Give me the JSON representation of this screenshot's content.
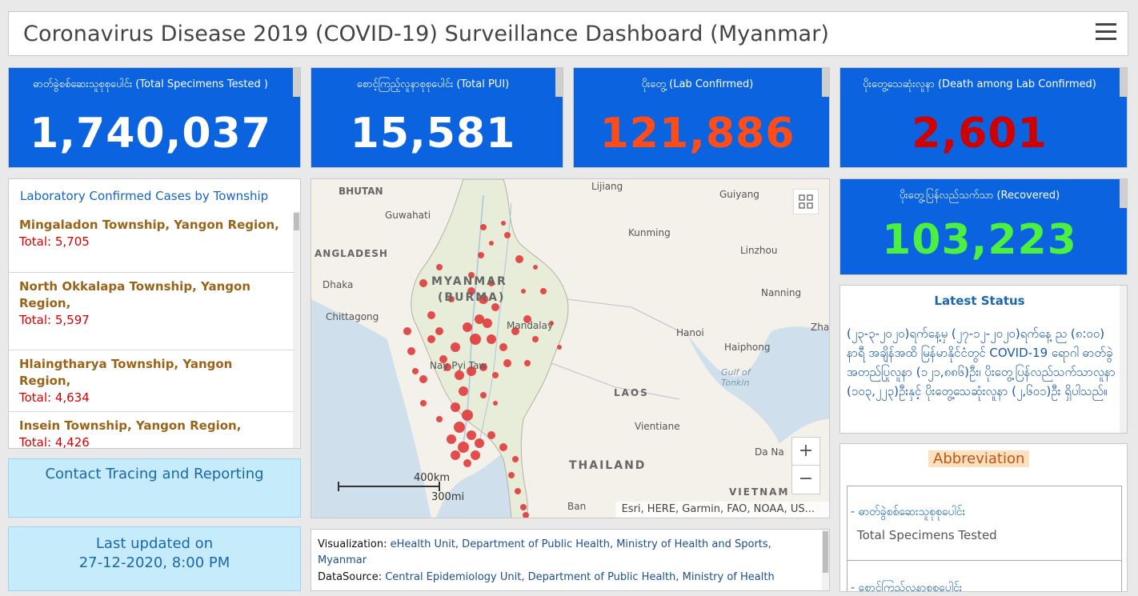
{
  "header": {
    "title": "Coronavirus Disease 2019 (COVID-19) Surveillance Dashboard (Myanmar)"
  },
  "stats": {
    "tested": {
      "label": "ဓာတ်ခွဲစစ်ဆေးသူစုစုပေါင်း (Total Specimens Tested )",
      "value": "1,740,037",
      "color": "#ffffff"
    },
    "pui": {
      "label": "စောင့်ကြည့်လူနာစုစုပေါင်း (Total PUI)",
      "value": "15,581",
      "color": "#ffffff"
    },
    "confirmed": {
      "label": "ပိုးတွေ့ (Lab Confirmed)",
      "value": "121,886",
      "color": "#ff4d1a"
    },
    "deaths": {
      "label": "ပိုးတွေ့သေဆုံးလူနာ (Death among Lab Confirmed)",
      "value": "2,601",
      "color": "#d10000"
    },
    "recovered": {
      "label": "ပိုးတွေ့ပြန်လည်သက်သာ (Recovered)",
      "value": "103,223",
      "color": "#4cf040"
    }
  },
  "township_list": {
    "title": "Laboratory Confirmed Cases by Township",
    "items": [
      {
        "name": "Mingaladon Township, Yangon Region,",
        "total": "Total: 5,705"
      },
      {
        "name": "North Okkalapa Township, Yangon Region,",
        "total": "Total: 5,597"
      },
      {
        "name": "Hlaingtharya Township, Yangon Region,",
        "total": "Total: 4,634"
      },
      {
        "name": "Insein Township, Yangon Region,",
        "total": "Total: 4,426"
      }
    ]
  },
  "contact_tracing": {
    "label": "Contact Tracing and Reporting"
  },
  "last_updated": {
    "line1": "Last updated on",
    "line2": "27-12-2020, 8:00 PM"
  },
  "map": {
    "labels": {
      "bhutan": "BHUTAN",
      "guwahati": "Guwahati",
      "lijiang": "Lijiang",
      "guiyang": "Guiyang",
      "kunming": "Kunming",
      "bangladesh": "ANGLADESH",
      "linzhou": "Linzhou",
      "dhaka": "Dhaka",
      "myanmar": "MYANMAR",
      "burma": "(BURMA)",
      "nanning": "Nanning",
      "chittagong": "Chittagong",
      "mandalay": "Mandalay",
      "hanoi": "Hanoi",
      "zhan": "Zhan",
      "haiphong": "Haiphong",
      "naypyitaw": "Nay Pyi Taw",
      "gulf": "Gulf of",
      "tonkin": "Tonkin",
      "laos": "LAOS",
      "vientiane": "Vientiane",
      "danang": "Da Na",
      "thailand": "THAILAND",
      "vietnam": "VIETNAM",
      "ban": "Ban"
    },
    "scale_km": "400km",
    "scale_mi": "300mi",
    "zoom_in": "+",
    "zoom_out": "−",
    "attribution": "Esri, HERE, Garmin, FAO, NOAA, US..."
  },
  "credit": {
    "vis_label": "Visualization:",
    "vis_value": "eHealth Unit, Department of Public Health, Ministry of Health and Sports, Myanmar",
    "ds_label": "DataSource:",
    "ds_value": "Central Epidemiology Unit, Department of Public Health, Ministry of Health"
  },
  "latest_status": {
    "title": "Latest Status",
    "body": "(၂၃-၃-၂၀၂၀)ရက်နေ့မှ (၂၇-၁၂-၂၀၂၀)ရက်နေ့ ည (၈:၀၀) နာရီ အချိန်အထိ မြန်မာနိုင်ငံတွင် COVID-19 ရောဂါ ဓာတ်ခွဲအတည်ပြုလူနာ (၁၂၁,၈၈၆)ဦး၊ ပိုးတွေ့ပြန်လည်သက်သာလူနာ (၁၀၃,၂၂၃)ဦးနှင့် ပိုးတွေ့သေဆုံးလူနာ (၂,၆၀၁)ဦး ရှိပါသည်။"
  },
  "abbreviation": {
    "title": "Abbreviation",
    "items": [
      {
        "key": "- ဓာတ်ခွဲစစ်ဆေးသူစုစုပေါင်း",
        "value": "Total Specimens Tested"
      },
      {
        "key": "- စောင့်ကြည့်လူနာစုစုပေါင်း",
        "value": ""
      }
    ]
  }
}
